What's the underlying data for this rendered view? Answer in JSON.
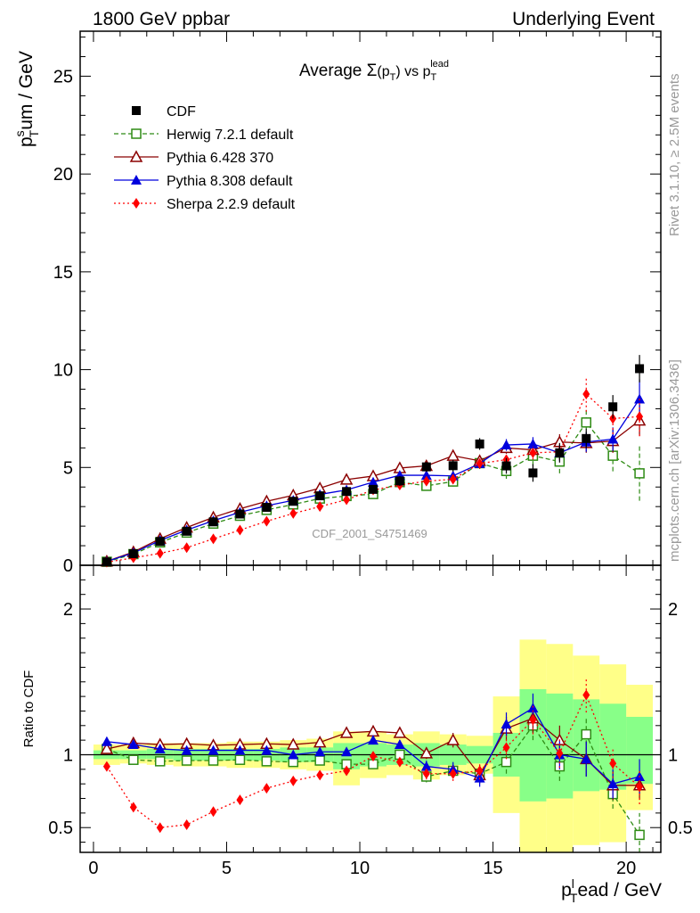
{
  "header": {
    "left": "1800 GeV ppbar",
    "right": "Underlying Event"
  },
  "side_labels": {
    "rivet": "Rivet 3.1.10, ≥ 2.5M events",
    "mcplots": "mcplots.cern.ch [arXiv:1306.3436]"
  },
  "watermark": "CDF_2001_S4751469",
  "colors": {
    "cdf": "#000000",
    "herwig": "#2e8b14",
    "pythia6": "#8b0000",
    "pythia8": "#0000dd",
    "sherpa": "#ff0000",
    "band_yellow": "#ffff88",
    "band_green": "#88ff88"
  },
  "chart_data": [
    {
      "type": "line",
      "title": "Average Σ(p_T) vs p_T^lead",
      "title_parts": {
        "pre": "Average ",
        "sigma": "Σ",
        "p": "(p",
        "sub": "T",
        "post": ")",
        "vs": " vs p",
        "vs_sub": "T",
        "vs_sup": "lead"
      },
      "ylabel": "p_T^sum / GeV",
      "ylabel_parts": {
        "p": "p",
        "sup": "s",
        "sub": "T",
        "rest": "um / GeV"
      },
      "xlim": [
        -0.5,
        21.3
      ],
      "ylim": [
        0,
        27.3
      ],
      "yticks": [
        0,
        5,
        10,
        15,
        20,
        25
      ],
      "ytick_labels": [
        "0",
        "5",
        "10",
        "15",
        "20",
        "25"
      ],
      "legend_position": "top-left",
      "x": [
        0.5,
        1.5,
        2.5,
        3.5,
        4.5,
        5.5,
        6.5,
        7.5,
        8.5,
        9.5,
        10.5,
        11.5,
        12.5,
        13.5,
        14.5,
        15.5,
        16.5,
        17.5,
        18.5,
        19.5,
        20.5
      ],
      "series": [
        {
          "name": "CDF",
          "key": "cdf",
          "style": "points",
          "values": [
            0.17,
            0.59,
            1.22,
            1.74,
            2.22,
            2.62,
            2.96,
            3.27,
            3.55,
            3.77,
            3.88,
            4.31,
            5.03,
            5.09,
            6.2,
            5.08,
            4.72,
            5.75,
            6.48,
            8.1,
            10.05
          ],
          "errors": [
            0.02,
            0.03,
            0.05,
            0.06,
            0.08,
            0.09,
            0.1,
            0.11,
            0.12,
            0.15,
            0.2,
            0.25,
            0.25,
            0.3,
            0.3,
            0.4,
            0.45,
            0.5,
            0.5,
            0.6,
            0.7
          ]
        },
        {
          "name": "Herwig 7.2.1 default",
          "key": "herwig",
          "style": "dashed-open-square",
          "values": [
            0.18,
            0.57,
            1.17,
            1.67,
            2.13,
            2.53,
            2.83,
            3.11,
            3.41,
            3.54,
            3.64,
            4.25,
            4.06,
            4.28,
            5.22,
            4.82,
            5.6,
            5.3,
            7.3,
            5.6,
            4.7
          ],
          "errors": [
            0.01,
            0.02,
            0.03,
            0.04,
            0.05,
            0.05,
            0.06,
            0.07,
            0.08,
            0.09,
            0.1,
            0.15,
            0.2,
            0.25,
            0.3,
            0.4,
            0.5,
            0.6,
            0.7,
            0.8,
            1.4
          ]
        },
        {
          "name": "Pythia 6.428 370",
          "key": "pythia6",
          "style": "solid-open-triangle",
          "values": [
            0.2,
            0.68,
            1.36,
            1.93,
            2.45,
            2.89,
            3.27,
            3.58,
            3.94,
            4.38,
            4.56,
            4.97,
            5.08,
            5.6,
            5.34,
            6.0,
            5.9,
            6.3,
            6.25,
            6.35,
            7.4
          ],
          "errors": [
            0.01,
            0.02,
            0.03,
            0.04,
            0.05,
            0.05,
            0.06,
            0.07,
            0.08,
            0.09,
            0.1,
            0.12,
            0.15,
            0.2,
            0.25,
            0.3,
            0.35,
            0.4,
            0.5,
            0.6,
            0.8
          ]
        },
        {
          "name": "Pythia 8.308 default",
          "key": "pythia8",
          "style": "solid-filled-triangle",
          "values": [
            0.2,
            0.63,
            1.27,
            1.8,
            2.28,
            2.71,
            3.04,
            3.32,
            3.62,
            3.85,
            4.25,
            4.6,
            4.6,
            4.57,
            5.2,
            6.15,
            6.2,
            5.75,
            6.3,
            6.45,
            8.5
          ],
          "errors": [
            0.01,
            0.02,
            0.03,
            0.04,
            0.05,
            0.05,
            0.06,
            0.07,
            0.08,
            0.09,
            0.1,
            0.12,
            0.15,
            0.2,
            0.25,
            0.3,
            0.35,
            0.4,
            0.5,
            0.6,
            1.0
          ]
        },
        {
          "name": "Sherpa 2.2.9 default",
          "key": "sherpa",
          "style": "dotted-diamond",
          "values": [
            0.16,
            0.38,
            0.61,
            0.9,
            1.35,
            1.8,
            2.25,
            2.65,
            3.0,
            3.35,
            3.85,
            4.1,
            4.3,
            4.4,
            5.2,
            5.4,
            5.75,
            5.8,
            8.75,
            7.5,
            7.6
          ],
          "errors": [
            0.01,
            0.02,
            0.03,
            0.04,
            0.05,
            0.05,
            0.06,
            0.07,
            0.08,
            0.09,
            0.1,
            0.12,
            0.15,
            0.2,
            0.25,
            0.3,
            0.35,
            0.4,
            0.9,
            0.8,
            1.0
          ]
        }
      ]
    },
    {
      "type": "line",
      "title": "",
      "xlabel": "p_T^lead / GeV",
      "xlabel_parts": {
        "p": "p",
        "sup": "l",
        "sub": "T",
        "rest": "ead / GeV"
      },
      "ylabel": "Ratio to CDF",
      "xlim": [
        -0.5,
        21.3
      ],
      "ylim": [
        0.33,
        2.3
      ],
      "xticks": [
        0,
        5,
        10,
        15,
        20
      ],
      "xtick_labels": [
        "0",
        "5",
        "10",
        "15",
        "20"
      ],
      "yticks": [
        0.5,
        1,
        2
      ],
      "ytick_labels": [
        "0.5",
        "1",
        "2"
      ],
      "x": [
        0.5,
        1.5,
        2.5,
        3.5,
        4.5,
        5.5,
        6.5,
        7.5,
        8.5,
        9.5,
        10.5,
        11.5,
        12.5,
        13.5,
        14.5,
        15.5,
        16.5,
        17.5,
        18.5,
        19.5,
        20.5
      ],
      "bands": {
        "x_edges": [
          0,
          1,
          2,
          3,
          4,
          5,
          6,
          7,
          8,
          9,
          10,
          11,
          12,
          13,
          14,
          15,
          16,
          17,
          18,
          19,
          20,
          21
        ],
        "yellow_low": [
          0.93,
          0.94,
          0.93,
          0.92,
          0.92,
          0.91,
          0.91,
          0.9,
          0.89,
          0.79,
          0.84,
          0.86,
          0.83,
          0.86,
          0.87,
          0.6,
          0.33,
          0.33,
          0.38,
          0.4,
          0.62
        ],
        "yellow_high": [
          1.07,
          1.07,
          1.08,
          1.08,
          1.08,
          1.09,
          1.09,
          1.1,
          1.11,
          1.16,
          1.16,
          1.14,
          1.16,
          1.14,
          1.13,
          1.4,
          1.79,
          1.76,
          1.68,
          1.62,
          1.48
        ],
        "green_low": [
          0.97,
          0.97,
          0.97,
          0.96,
          0.96,
          0.96,
          0.96,
          0.95,
          0.95,
          0.9,
          0.92,
          0.93,
          0.92,
          0.93,
          0.94,
          0.85,
          0.68,
          0.7,
          0.75,
          0.76,
          0.8
        ],
        "green_high": [
          1.03,
          1.03,
          1.04,
          1.04,
          1.04,
          1.04,
          1.04,
          1.05,
          1.05,
          1.08,
          1.08,
          1.07,
          1.08,
          1.07,
          1.06,
          1.15,
          1.45,
          1.42,
          1.38,
          1.35,
          1.26
        ]
      },
      "series": [
        {
          "name": "Herwig 7.2.1 default",
          "key": "herwig",
          "style": "dashed-open-square",
          "values": [
            1.04,
            0.965,
            0.955,
            0.96,
            0.96,
            0.965,
            0.955,
            0.95,
            0.96,
            0.935,
            0.935,
            1.0,
            0.85,
            0.89,
            0.87,
            0.95,
            1.2,
            0.92,
            1.14,
            0.73,
            0.45
          ],
          "errors": [
            0.01,
            0.01,
            0.01,
            0.01,
            0.01,
            0.01,
            0.01,
            0.02,
            0.02,
            0.02,
            0.03,
            0.03,
            0.04,
            0.05,
            0.06,
            0.08,
            0.1,
            0.1,
            0.12,
            0.1,
            0.15
          ]
        },
        {
          "name": "Pythia 6.428 370",
          "key": "pythia6",
          "style": "solid-open-triangle",
          "values": [
            1.04,
            1.08,
            1.07,
            1.075,
            1.065,
            1.07,
            1.075,
            1.07,
            1.085,
            1.15,
            1.16,
            1.15,
            1.01,
            1.1,
            0.86,
            1.18,
            1.25,
            1.1,
            0.97,
            0.79,
            0.79
          ],
          "errors": [
            0.01,
            0.01,
            0.01,
            0.01,
            0.01,
            0.01,
            0.01,
            0.02,
            0.02,
            0.02,
            0.03,
            0.03,
            0.04,
            0.05,
            0.06,
            0.08,
            0.1,
            0.1,
            0.12,
            0.1,
            0.1
          ]
        },
        {
          "name": "Pythia 8.308 default",
          "key": "pythia8",
          "style": "solid-filled-triangle",
          "values": [
            1.09,
            1.07,
            1.04,
            1.03,
            1.03,
            1.03,
            1.03,
            1.0,
            1.02,
            1.02,
            1.1,
            1.07,
            0.92,
            0.9,
            0.84,
            1.21,
            1.32,
            1.0,
            0.97,
            0.8,
            0.85
          ],
          "errors": [
            0.01,
            0.01,
            0.01,
            0.01,
            0.01,
            0.01,
            0.01,
            0.02,
            0.02,
            0.02,
            0.03,
            0.03,
            0.04,
            0.05,
            0.06,
            0.08,
            0.1,
            0.1,
            0.12,
            0.1,
            0.12
          ]
        },
        {
          "name": "Sherpa 2.2.9 default",
          "key": "sherpa",
          "style": "dotted-diamond",
          "values": [
            0.92,
            0.64,
            0.5,
            0.52,
            0.61,
            0.69,
            0.77,
            0.82,
            0.86,
            0.89,
            0.99,
            0.95,
            0.87,
            0.87,
            0.89,
            1.05,
            1.24,
            1.01,
            1.41,
            0.94,
            0.78
          ],
          "errors": [
            0.01,
            0.01,
            0.01,
            0.01,
            0.01,
            0.01,
            0.01,
            0.02,
            0.02,
            0.02,
            0.03,
            0.03,
            0.04,
            0.05,
            0.06,
            0.08,
            0.1,
            0.1,
            0.12,
            0.1,
            0.12
          ]
        }
      ]
    }
  ]
}
